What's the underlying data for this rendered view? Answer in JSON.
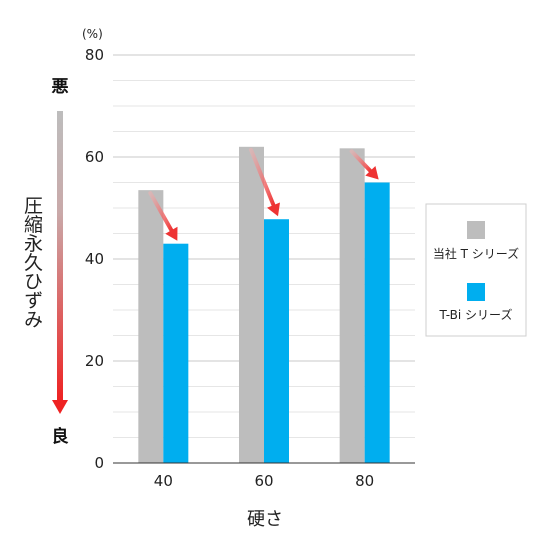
{
  "chart_data": {
    "type": "bar",
    "unit": "(%)",
    "ylabel": "圧縮永久ひずみ",
    "xlabel": "硬さ",
    "scale_top_label": "悪",
    "scale_bottom_label": "良",
    "categories": [
      "40",
      "60",
      "80"
    ],
    "series": [
      {
        "name": "当社 T シリーズ",
        "color": "#bdbdbd",
        "values": [
          53.5,
          62,
          61.7
        ]
      },
      {
        "name": "T-Bi シリーズ",
        "color": "#00aeef",
        "values": [
          43,
          47.8,
          55
        ]
      }
    ],
    "ylim": [
      0,
      80
    ],
    "yticks": [
      0,
      20,
      40,
      60,
      80
    ],
    "grid": true,
    "legend_position": "right",
    "arrow_color": "#ee3333"
  }
}
